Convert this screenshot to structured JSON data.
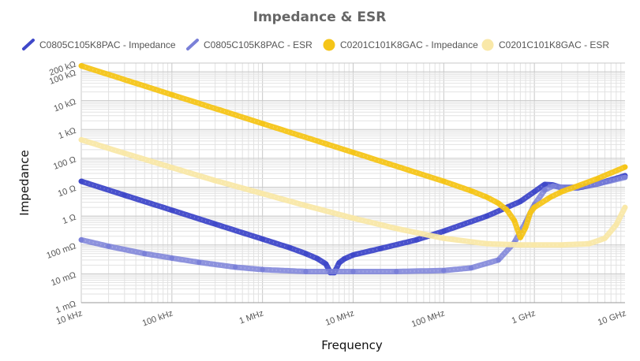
{
  "chart_data": {
    "type": "line",
    "title": "Impedance & ESR",
    "xlabel": "Frequency",
    "ylabel": "Impedance",
    "x_scale": "log",
    "y_scale": "log",
    "xlim": [
      10000,
      10000000000
    ],
    "ylim": [
      0.001,
      200000
    ],
    "grid": true,
    "legend_position": "top",
    "x_ticks": [
      {
        "value": 10000,
        "label": "10 kHz"
      },
      {
        "value": 100000,
        "label": "100 kHz"
      },
      {
        "value": 1000000,
        "label": "1 MHz"
      },
      {
        "value": 10000000,
        "label": "10 MHz"
      },
      {
        "value": 100000000,
        "label": "100 MHz"
      },
      {
        "value": 1000000000,
        "label": "1 GHz"
      },
      {
        "value": 10000000000,
        "label": "10 GHz"
      }
    ],
    "y_ticks": [
      {
        "value": 0.001,
        "label": "1 mΩ"
      },
      {
        "value": 0.01,
        "label": "10 mΩ"
      },
      {
        "value": 0.1,
        "label": "100 mΩ"
      },
      {
        "value": 1,
        "label": "1 Ω"
      },
      {
        "value": 10,
        "label": "10 Ω"
      },
      {
        "value": 100,
        "label": "100 Ω"
      },
      {
        "value": 1000,
        "label": "1 kΩ"
      },
      {
        "value": 10000,
        "label": "10 kΩ"
      },
      {
        "value": 100000,
        "label": "100 kΩ"
      },
      {
        "value": 200000,
        "label": "200 kΩ"
      }
    ],
    "series": [
      {
        "name": "C0805C105K8PAC - Impedance",
        "color": "#3f48c9",
        "legend_marker": "line",
        "x": [
          10000,
          30000,
          100000,
          300000,
          1000000,
          2000000,
          3000000,
          4000000,
          5000000,
          5600000,
          6200000,
          7000000,
          8000000,
          10000000,
          20000000,
          50000000,
          100000000,
          300000000,
          700000000,
          1000000000,
          1300000000,
          1600000000,
          2000000000,
          3000000000,
          5000000000,
          10000000000
        ],
        "y": [
          16,
          5.3,
          1.6,
          0.53,
          0.16,
          0.08,
          0.05,
          0.034,
          0.022,
          0.011,
          0.011,
          0.024,
          0.033,
          0.045,
          0.075,
          0.15,
          0.3,
          1.0,
          3.2,
          7.0,
          12.5,
          12.0,
          9.5,
          9.5,
          13,
          25
        ]
      },
      {
        "name": "C0805C105K8PAC - ESR",
        "color": "#7a80d8",
        "legend_marker": "line",
        "x": [
          10000,
          20000,
          50000,
          100000,
          200000,
          500000,
          1000000,
          3000000,
          10000000,
          30000000,
          100000000,
          200000000,
          400000000,
          600000000,
          800000000,
          1000000000,
          1300000000,
          1600000000,
          2000000000,
          3000000000,
          5000000000,
          10000000000
        ],
        "y": [
          0.15,
          0.09,
          0.05,
          0.035,
          0.025,
          0.017,
          0.014,
          0.012,
          0.012,
          0.012,
          0.013,
          0.016,
          0.03,
          0.12,
          0.6,
          2.5,
          8,
          11,
          10,
          10,
          13,
          22
        ]
      },
      {
        "name": "C0201C101K8GAC - Impedance",
        "color": "#f5c518",
        "legend_marker": "dot",
        "x": [
          10000,
          100000,
          1000000,
          10000000,
          100000000,
          200000000,
          300000000,
          400000000,
          500000000,
          600000000,
          700000000,
          800000000,
          900000000,
          1000000000,
          1500000000,
          2000000000,
          3000000000,
          5000000000,
          10000000000
        ],
        "y": [
          160000,
          16000,
          1600,
          160,
          16,
          7.5,
          4.5,
          2.8,
          1.6,
          0.7,
          0.18,
          0.4,
          1.3,
          2.0,
          4.5,
          7.0,
          11,
          20,
          50
        ]
      },
      {
        "name": "C0201C101K8GAC - ESR",
        "color": "#f9e8a8",
        "legend_marker": "dot",
        "x": [
          10000,
          30000,
          100000,
          300000,
          1000000,
          3000000,
          10000000,
          30000000,
          100000000,
          300000000,
          700000000,
          1000000000,
          2000000000,
          4000000000,
          6000000000,
          8000000000,
          10000000000
        ],
        "y": [
          440,
          150,
          48,
          17,
          6,
          2.3,
          0.85,
          0.37,
          0.17,
          0.11,
          0.1,
          0.1,
          0.1,
          0.11,
          0.17,
          0.5,
          2.0
        ]
      }
    ]
  }
}
